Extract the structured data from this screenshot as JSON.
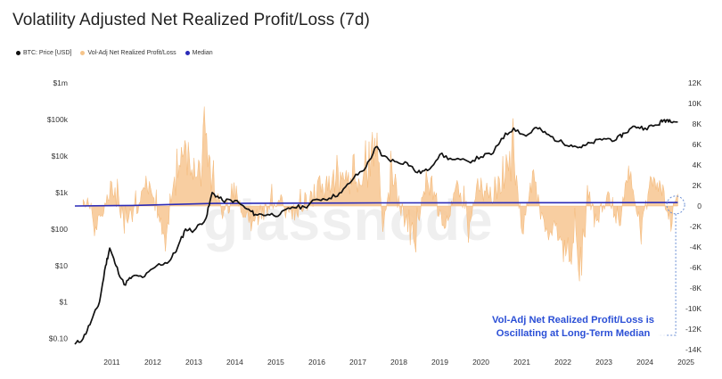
{
  "title": "Volatility Adjusted Net Realized Profit/Loss (7d)",
  "legend": [
    {
      "label": "BTC: Price [USD]",
      "color": "#111111"
    },
    {
      "label": "Vol-Adj Net Realized Profit/Loss",
      "color": "#f5c48a"
    },
    {
      "label": "Median",
      "color": "#2b2bb8"
    }
  ],
  "watermark": "glassnode",
  "annotation_line1": "Vol-Adj Net Realized Profit/Loss is",
  "annotation_line2": "Oscillating at Long-Term Median",
  "chart_data": {
    "type": "line",
    "title": "Volatility Adjusted Net Realized Profit/Loss (7d)",
    "x_tick_labels": [
      "2011",
      "2012",
      "2013",
      "2014",
      "2015",
      "2016",
      "2017",
      "2018",
      "2019",
      "2020",
      "2021",
      "2022",
      "2023",
      "2024",
      "2025"
    ],
    "x_range": [
      2010.6,
      2025.4
    ],
    "y_left": {
      "scale": "log",
      "range": [
        0.05,
        1000000
      ],
      "tick_values": [
        0.1,
        1,
        10,
        100,
        1000,
        10000,
        100000,
        1000000
      ],
      "tick_labels": [
        "$0.10",
        "$1",
        "$10",
        "$100",
        "$1k",
        "$10k",
        "$100k",
        "$1m"
      ]
    },
    "y_right": {
      "range": [
        -14000,
        12000
      ],
      "tick_values": [
        12000,
        10000,
        8000,
        6000,
        4000,
        2000,
        0,
        -2000,
        -4000,
        -6000,
        -8000,
        -10000,
        -12000,
        -14000
      ],
      "tick_labels": [
        "12K",
        "10K",
        "8K",
        "6K",
        "4K",
        "2K",
        "0",
        "-2K",
        "-4K",
        "-6K",
        "-8K",
        "-10K",
        "-12K",
        "-14K"
      ]
    },
    "series": [
      {
        "name": "BTC: Price [USD]",
        "axis": "left",
        "color": "#111111",
        "x": [
          2010.6,
          2010.8,
          2011.0,
          2011.2,
          2011.35,
          2011.45,
          2011.6,
          2011.8,
          2012.0,
          2012.3,
          2012.6,
          2012.9,
          2013.1,
          2013.3,
          2013.5,
          2013.8,
          2013.95,
          2014.2,
          2014.5,
          2014.8,
          2015.0,
          2015.3,
          2015.6,
          2015.9,
          2016.2,
          2016.5,
          2016.8,
          2017.1,
          2017.4,
          2017.7,
          2017.95,
          2018.1,
          2018.4,
          2018.7,
          2018.95,
          2019.2,
          2019.5,
          2019.8,
          2020.2,
          2020.5,
          2020.8,
          2021.0,
          2021.3,
          2021.6,
          2021.85,
          2022.1,
          2022.4,
          2022.7,
          2022.95,
          2023.2,
          2023.5,
          2023.8,
          2024.0,
          2024.25,
          2024.5,
          2024.8,
          2024.95,
          2025.1,
          2025.3
        ],
        "values": [
          0.07,
          0.1,
          0.3,
          1,
          10,
          30,
          10,
          3,
          5,
          5,
          10,
          13,
          30,
          100,
          90,
          200,
          1000,
          600,
          600,
          350,
          250,
          250,
          250,
          400,
          400,
          650,
          700,
          1000,
          2500,
          5000,
          18000,
          10000,
          7000,
          6500,
          3500,
          4000,
          11000,
          8000,
          7000,
          9500,
          12000,
          30000,
          58000,
          35000,
          60000,
          40000,
          25000,
          20000,
          17000,
          23000,
          30000,
          28000,
          42000,
          65000,
          58000,
          70000,
          95000,
          98000,
          85000
        ]
      },
      {
        "name": "Median",
        "axis": "right",
        "color": "#2b2bb8",
        "x": [
          2010.6,
          2012.0,
          2014.0,
          2016.0,
          2018.0,
          2020.0,
          2022.0,
          2024.0,
          2025.3
        ],
        "values": [
          0,
          50,
          250,
          280,
          300,
          310,
          320,
          330,
          340
        ]
      },
      {
        "name": "Vol-Adj Net Realized Profit/Loss",
        "axis": "right",
        "color": "#f5c48a",
        "x": [
          2010.8,
          2011.1,
          2011.5,
          2011.9,
          2012.4,
          2012.8,
          2013.1,
          2013.3,
          2013.5,
          2013.8,
          2014.0,
          2014.2,
          2014.5,
          2014.9,
          2015.1,
          2015.5,
          2015.9,
          2016.3,
          2016.6,
          2016.9,
          2017.2,
          2017.5,
          2017.8,
          2017.95,
          2018.1,
          2018.3,
          2018.6,
          2018.9,
          2019.1,
          2019.3,
          2019.6,
          2019.9,
          2020.2,
          2020.5,
          2020.9,
          2021.0,
          2021.3,
          2021.5,
          2021.8,
          2022.0,
          2022.3,
          2022.5,
          2022.8,
          2022.9,
          2023.1,
          2023.3,
          2023.6,
          2023.9,
          2024.1,
          2024.2,
          2024.4,
          2024.7,
          2024.9,
          2025.1,
          2025.3
        ],
        "values": [
          1500,
          -2500,
          2000,
          -1800,
          2500,
          -3500,
          5000,
          7200,
          4500,
          8000,
          3500,
          -1200,
          1500,
          -2000,
          -1500,
          1000,
          -1500,
          1500,
          2000,
          3500,
          4500,
          3000,
          5500,
          9000,
          -3000,
          4500,
          -1500,
          -4000,
          2000,
          3500,
          -3000,
          2500,
          -2500,
          3500,
          1500,
          5000,
          7500,
          -3000,
          4500,
          -2500,
          -3000,
          -4500,
          -6000,
          -10200,
          2000,
          -2000,
          1500,
          -2500,
          5000,
          1000,
          -3500,
          4500,
          3000,
          -2500,
          1500
        ]
      }
    ]
  }
}
